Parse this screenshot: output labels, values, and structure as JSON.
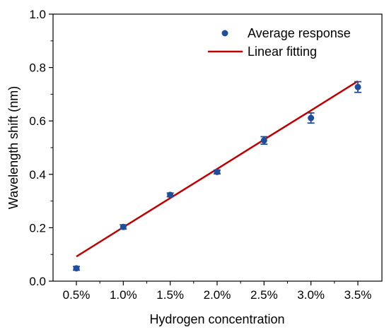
{
  "chart_data": {
    "type": "scatter",
    "xlabel": "Hydrogen concentration",
    "ylabel": "Wavelength shift (nm)",
    "ylim": [
      0.0,
      1.0
    ],
    "y_ticks": [
      "0.0",
      "0.2",
      "0.4",
      "0.6",
      "0.8",
      "1.0"
    ],
    "categories": [
      "0.5%",
      "1.0%",
      "1.5%",
      "2.0%",
      "2.5%",
      "3.0%",
      "3.5%"
    ],
    "series": [
      {
        "name": "Average response",
        "kind": "scatter-errorbar",
        "color": "#1f4e9c",
        "values": [
          0.048,
          0.203,
          0.323,
          0.409,
          0.527,
          0.611,
          0.727
        ],
        "errors": [
          0.007,
          0.008,
          0.007,
          0.007,
          0.014,
          0.019,
          0.02
        ]
      },
      {
        "name": "Linear fitting",
        "kind": "line",
        "color": "#c00000",
        "values": [
          0.092,
          0.202,
          0.311,
          0.42,
          0.53,
          0.639,
          0.749
        ]
      }
    ],
    "legend": "top-right",
    "grid": false
  }
}
